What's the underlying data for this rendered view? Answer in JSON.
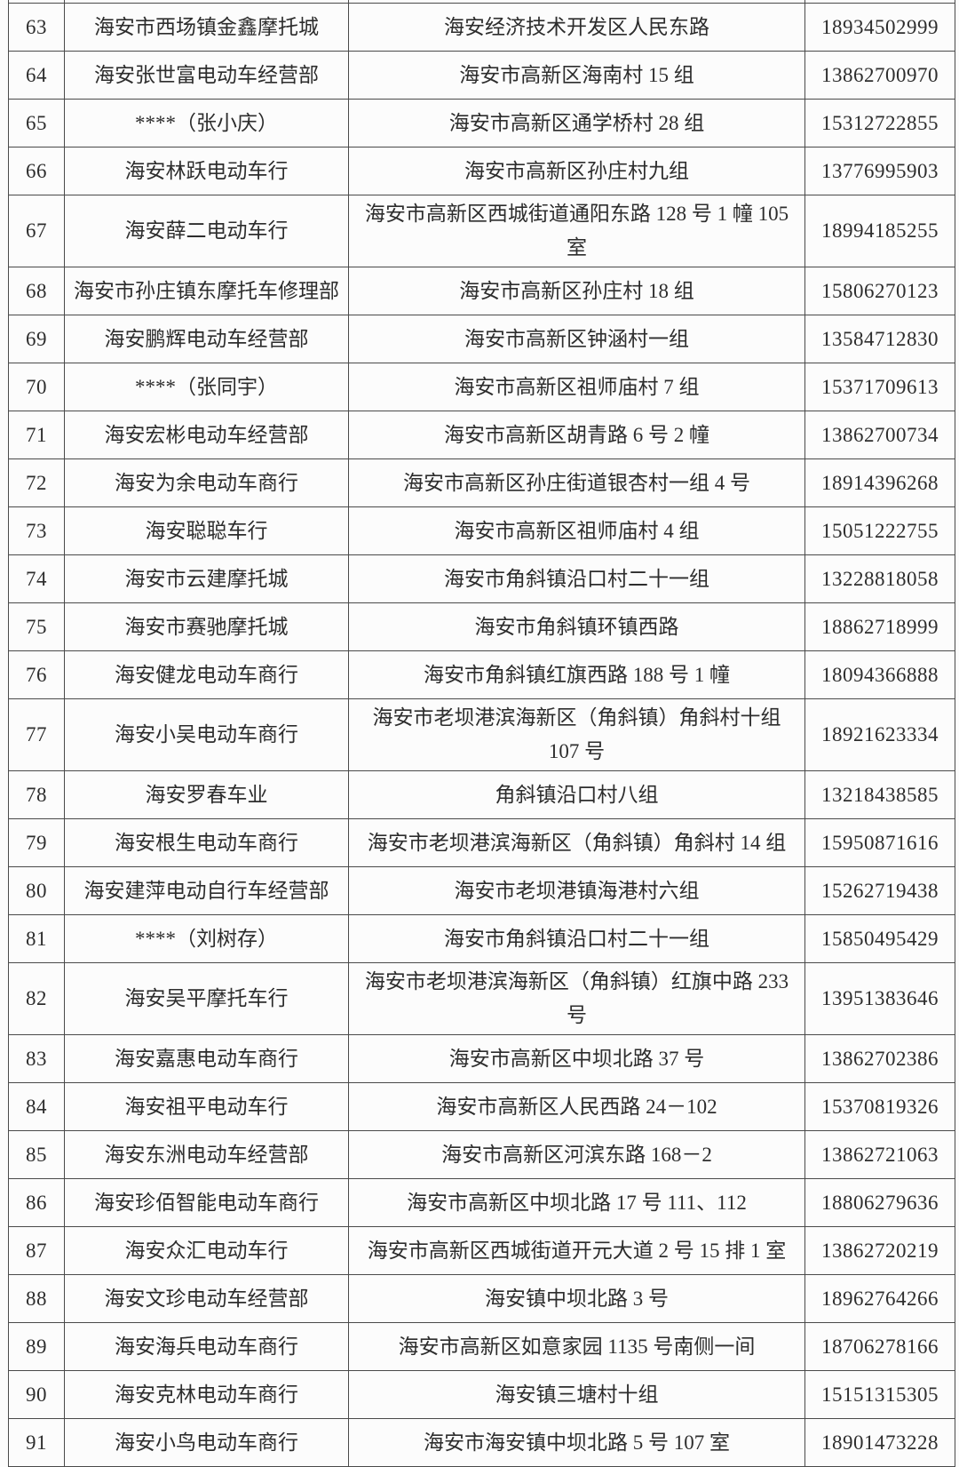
{
  "page": {
    "background_color": "#fcfcfc",
    "text_color": "#2d2d2d",
    "grid_color": "#4a4a4a",
    "visible_row_range": "63-91"
  },
  "table": {
    "rows": [
      {
        "no": "63",
        "name": "海安市西场镇金鑫摩托城",
        "address": "海安经济技术开发区人民东路",
        "phone": "18934502999"
      },
      {
        "no": "64",
        "name": "海安张世富电动车经营部",
        "address": "海安市高新区海南村 15 组",
        "phone": "13862700970"
      },
      {
        "no": "65",
        "name": "****（张小庆）",
        "address": "海安市高新区通学桥村 28 组",
        "phone": "15312722855"
      },
      {
        "no": "66",
        "name": "海安林跃电动车行",
        "address": "海安市高新区孙庄村九组",
        "phone": "13776995903"
      },
      {
        "no": "67",
        "name": "海安薛二电动车行",
        "address": "海安市高新区西城街道通阳东路 128 号 1 幢 105 室",
        "phone": "18994185255"
      },
      {
        "no": "68",
        "name": "海安市孙庄镇东摩托车修理部",
        "address": "海安市高新区孙庄村 18 组",
        "phone": "15806270123"
      },
      {
        "no": "69",
        "name": "海安鹏辉电动车经营部",
        "address": "海安市高新区钟涵村一组",
        "phone": "13584712830"
      },
      {
        "no": "70",
        "name": "****（张同宇）",
        "address": "海安市高新区祖师庙村 7 组",
        "phone": "15371709613"
      },
      {
        "no": "71",
        "name": "海安宏彬电动车经营部",
        "address": "海安市高新区胡青路 6 号 2 幢",
        "phone": "13862700734"
      },
      {
        "no": "72",
        "name": "海安为余电动车商行",
        "address": "海安市高新区孙庄街道银杏村一组 4 号",
        "phone": "18914396268"
      },
      {
        "no": "73",
        "name": "海安聪聪车行",
        "address": "海安市高新区祖师庙村 4 组",
        "phone": "15051222755"
      },
      {
        "no": "74",
        "name": "海安市云建摩托城",
        "address": "海安市角斜镇沿口村二十一组",
        "phone": "13228818058"
      },
      {
        "no": "75",
        "name": "海安市赛驰摩托城",
        "address": "海安市角斜镇环镇西路",
        "phone": "18862718999"
      },
      {
        "no": "76",
        "name": "海安健龙电动车商行",
        "address": "海安市角斜镇红旗西路 188 号 1 幢",
        "phone": "18094366888"
      },
      {
        "no": "77",
        "name": "海安小吴电动车商行",
        "address": "海安市老坝港滨海新区（角斜镇）角斜村十组 107 号",
        "phone": "18921623334"
      },
      {
        "no": "78",
        "name": "海安罗春车业",
        "address": "角斜镇沿口村八组",
        "phone": "13218438585"
      },
      {
        "no": "79",
        "name": "海安根生电动车商行",
        "address": "海安市老坝港滨海新区（角斜镇）角斜村 14 组",
        "phone": "15950871616"
      },
      {
        "no": "80",
        "name": "海安建萍电动自行车经营部",
        "address": "海安市老坝港镇海港村六组",
        "phone": "15262719438"
      },
      {
        "no": "81",
        "name": "****（刘树存）",
        "address": "海安市角斜镇沿口村二十一组",
        "phone": "15850495429"
      },
      {
        "no": "82",
        "name": "海安吴平摩托车行",
        "address": "海安市老坝港滨海新区（角斜镇）红旗中路 233 号",
        "phone": "13951383646"
      },
      {
        "no": "83",
        "name": "海安嘉惠电动车商行",
        "address": "海安市高新区中坝北路 37 号",
        "phone": "13862702386"
      },
      {
        "no": "84",
        "name": "海安祖平电动车行",
        "address": "海安市高新区人民西路 24－102",
        "phone": "15370819326"
      },
      {
        "no": "85",
        "name": "海安东洲电动车经营部",
        "address": "海安市高新区河滨东路 168－2",
        "phone": "13862721063"
      },
      {
        "no": "86",
        "name": "海安珍佰智能电动车商行",
        "address": "海安市高新区中坝北路 17 号 111、112",
        "phone": "18806279636"
      },
      {
        "no": "87",
        "name": "海安众汇电动车行",
        "address": "海安市高新区西城街道开元大道 2 号 15 排 1 室",
        "phone": "13862720219"
      },
      {
        "no": "88",
        "name": "海安文珍电动车经营部",
        "address": "海安镇中坝北路 3 号",
        "phone": "18962764266"
      },
      {
        "no": "89",
        "name": "海安海兵电动车商行",
        "address": "海安市高新区如意家园 1135 号南侧一间",
        "phone": "18706278166"
      },
      {
        "no": "90",
        "name": "海安克林电动车商行",
        "address": "海安镇三塘村十组",
        "phone": "15151315305"
      },
      {
        "no": "91",
        "name": "海安小鸟电动车商行",
        "address": "海安市海安镇中坝北路 5 号 107 室",
        "phone": "18901473228"
      }
    ]
  }
}
